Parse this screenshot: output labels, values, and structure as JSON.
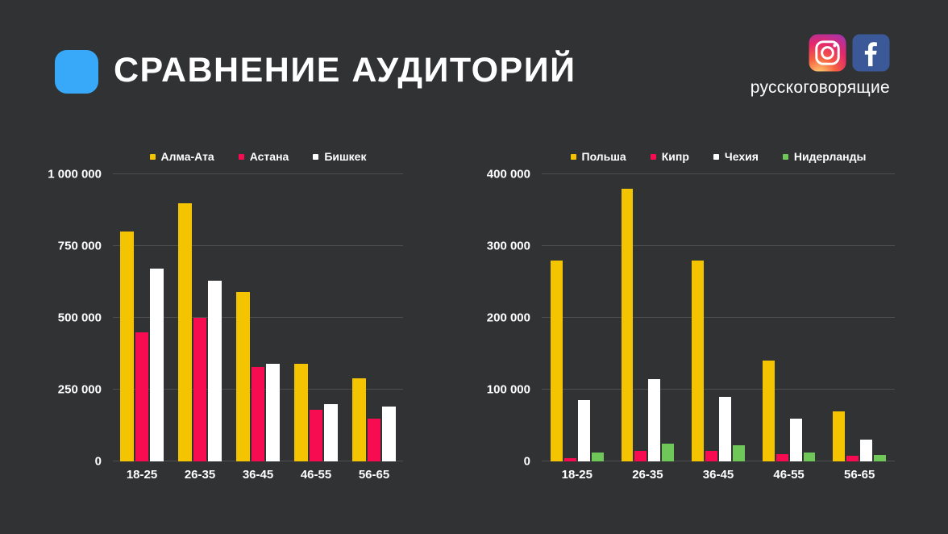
{
  "header": {
    "title": "СРАВНЕНИЕ АУДИТОРИЙ",
    "audience_caption": "русскоговорящие",
    "accent_color": "#38A9F8"
  },
  "colors": {
    "background": "#313234",
    "text": "#FFFFFF",
    "gridline": "rgba(255,255,255,0.14)",
    "facebook_blue": "#3B5998",
    "series_yellow": "#F5C400",
    "series_red": "#F70B51",
    "series_white": "#FFFFFF",
    "series_green": "#6FC75A"
  },
  "chart_data": [
    {
      "type": "bar",
      "title": "",
      "categories": [
        "18-25",
        "26-35",
        "36-45",
        "46-55",
        "56-65"
      ],
      "series": [
        {
          "name": "Алма-Ата",
          "color": "#F5C400",
          "values": [
            800000,
            900000,
            590000,
            340000,
            290000
          ]
        },
        {
          "name": "Астана",
          "color": "#F70B51",
          "values": [
            450000,
            500000,
            330000,
            180000,
            150000
          ]
        },
        {
          "name": "Бишкек",
          "color": "#FFFFFF",
          "values": [
            670000,
            630000,
            340000,
            200000,
            190000
          ]
        }
      ],
      "xlabel": "",
      "ylabel": "",
      "ylim": [
        0,
        1000000
      ],
      "ytick_step": 250000,
      "ytick_labels": [
        "0",
        "250 000",
        "500 000",
        "750 000",
        "1 000 000"
      ],
      "grid": true,
      "legend_position": "top"
    },
    {
      "type": "bar",
      "title": "",
      "categories": [
        "18-25",
        "26-35",
        "36-45",
        "46-55",
        "56-65"
      ],
      "series": [
        {
          "name": "Польша",
          "color": "#F5C400",
          "values": [
            280000,
            380000,
            280000,
            140000,
            70000
          ]
        },
        {
          "name": "Кипр",
          "color": "#F70B51",
          "values": [
            5000,
            15000,
            15000,
            10000,
            8000
          ]
        },
        {
          "name": "Чехия",
          "color": "#FFFFFF",
          "values": [
            85000,
            115000,
            90000,
            60000,
            30000
          ]
        },
        {
          "name": "Нидерланды",
          "color": "#6FC75A",
          "values": [
            12000,
            25000,
            22000,
            12000,
            9000
          ]
        }
      ],
      "xlabel": "",
      "ylabel": "",
      "ylim": [
        0,
        400000
      ],
      "ytick_step": 100000,
      "ytick_labels": [
        "0",
        "100 000",
        "200 000",
        "300 000",
        "400 000"
      ],
      "grid": true,
      "legend_position": "top"
    }
  ]
}
